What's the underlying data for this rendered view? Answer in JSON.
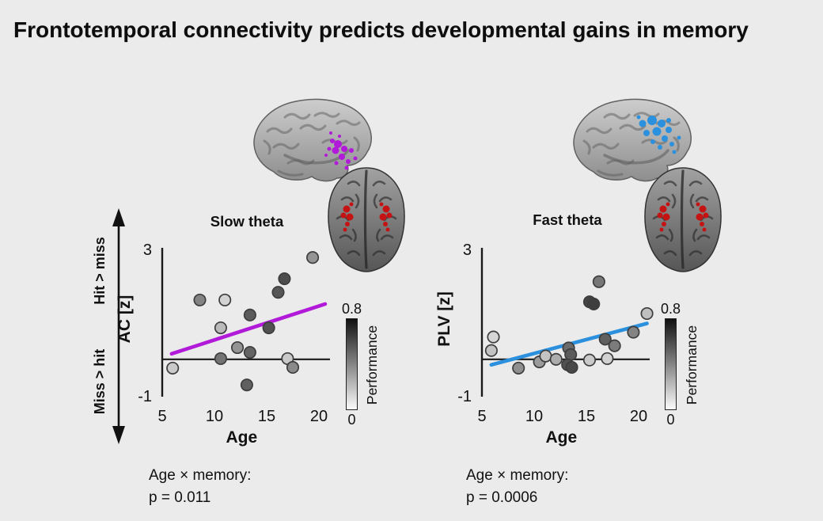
{
  "title": "Frontotemporal connectivity predicts developmental gains in memory",
  "colors": {
    "background": "#ebebeb",
    "axis": "#1a1a1a",
    "slow_theta": "#b01ad8",
    "fast_theta": "#2b90dd",
    "mtl_cluster": "#c51212",
    "point_stroke": "#3d3d3d"
  },
  "arrow": {
    "top_label": "Hit > miss",
    "bottom_label": "Miss > hit"
  },
  "chart_data": [
    {
      "type": "scatter",
      "title": "Slow theta",
      "xlabel": "Age",
      "ylabel": "AC [z]",
      "xlim": [
        5,
        21
      ],
      "ylim": [
        -1,
        3
      ],
      "xticks": [
        5,
        10,
        15,
        20
      ],
      "yticks": [
        3,
        -1
      ],
      "grid": false,
      "zero_line": true,
      "regression_line": {
        "x": [
          5.9,
          20.6
        ],
        "y": [
          0.15,
          1.51
        ],
        "color": "slow_theta"
      },
      "colorbar": {
        "label": "Performance",
        "min": 0,
        "max": 0.8
      },
      "stats_note": [
        "Age × memory:",
        "p = 0.011"
      ],
      "points": [
        {
          "age": 6.0,
          "value": -0.24,
          "performance": 0.15
        },
        {
          "age": 8.6,
          "value": 1.62,
          "performance": 0.45
        },
        {
          "age": 11.0,
          "value": 1.62,
          "performance": 0.12
        },
        {
          "age": 10.6,
          "value": 0.86,
          "performance": 0.22
        },
        {
          "age": 12.2,
          "value": 0.32,
          "performance": 0.38
        },
        {
          "age": 13.4,
          "value": 1.21,
          "performance": 0.62
        },
        {
          "age": 13.4,
          "value": 0.19,
          "performance": 0.58
        },
        {
          "age": 10.6,
          "value": 0.02,
          "performance": 0.52
        },
        {
          "age": 13.1,
          "value": -0.7,
          "performance": 0.6
        },
        {
          "age": 15.2,
          "value": 0.86,
          "performance": 0.66
        },
        {
          "age": 16.1,
          "value": 1.83,
          "performance": 0.64
        },
        {
          "age": 16.7,
          "value": 2.2,
          "performance": 0.68
        },
        {
          "age": 17.0,
          "value": 0.02,
          "performance": 0.15
        },
        {
          "age": 17.5,
          "value": -0.22,
          "performance": 0.42
        },
        {
          "age": 19.4,
          "value": 2.78,
          "performance": 0.38
        }
      ]
    },
    {
      "type": "scatter",
      "title": "Fast theta",
      "xlabel": "Age",
      "ylabel": "PLV [z]",
      "xlim": [
        5,
        21
      ],
      "ylim": [
        -1,
        3
      ],
      "xticks": [
        5,
        10,
        15,
        20
      ],
      "yticks": [
        3,
        -1
      ],
      "grid": false,
      "zero_line": true,
      "regression_line": {
        "x": [
          5.9,
          20.8
        ],
        "y": [
          -0.15,
          0.98
        ],
        "color": "fast_theta"
      },
      "colorbar": {
        "label": "Performance",
        "min": 0,
        "max": 0.8
      },
      "stats_note": [
        "Age × memory:",
        "p = 0.0006"
      ],
      "points": [
        {
          "age": 6.1,
          "value": 0.61,
          "performance": 0.1
        },
        {
          "age": 5.9,
          "value": 0.24,
          "performance": 0.18
        },
        {
          "age": 8.5,
          "value": -0.24,
          "performance": 0.4
        },
        {
          "age": 10.5,
          "value": -0.07,
          "performance": 0.35
        },
        {
          "age": 11.1,
          "value": 0.09,
          "performance": 0.18
        },
        {
          "age": 12.1,
          "value": 0.0,
          "performance": 0.28
        },
        {
          "age": 13.3,
          "value": 0.31,
          "performance": 0.55
        },
        {
          "age": 13.5,
          "value": 0.13,
          "performance": 0.62
        },
        {
          "age": 13.2,
          "value": -0.15,
          "performance": 0.66
        },
        {
          "age": 13.6,
          "value": -0.22,
          "performance": 0.7
        },
        {
          "age": 15.3,
          "value": -0.02,
          "performance": 0.15
        },
        {
          "age": 16.2,
          "value": 2.12,
          "performance": 0.5
        },
        {
          "age": 15.3,
          "value": 1.57,
          "performance": 0.72
        },
        {
          "age": 15.7,
          "value": 1.51,
          "performance": 0.74
        },
        {
          "age": 16.8,
          "value": 0.55,
          "performance": 0.6
        },
        {
          "age": 17.7,
          "value": 0.37,
          "performance": 0.48
        },
        {
          "age": 17.0,
          "value": 0.02,
          "performance": 0.12
        },
        {
          "age": 19.5,
          "value": 0.74,
          "performance": 0.45
        },
        {
          "age": 20.8,
          "value": 1.25,
          "performance": 0.2
        }
      ]
    }
  ]
}
